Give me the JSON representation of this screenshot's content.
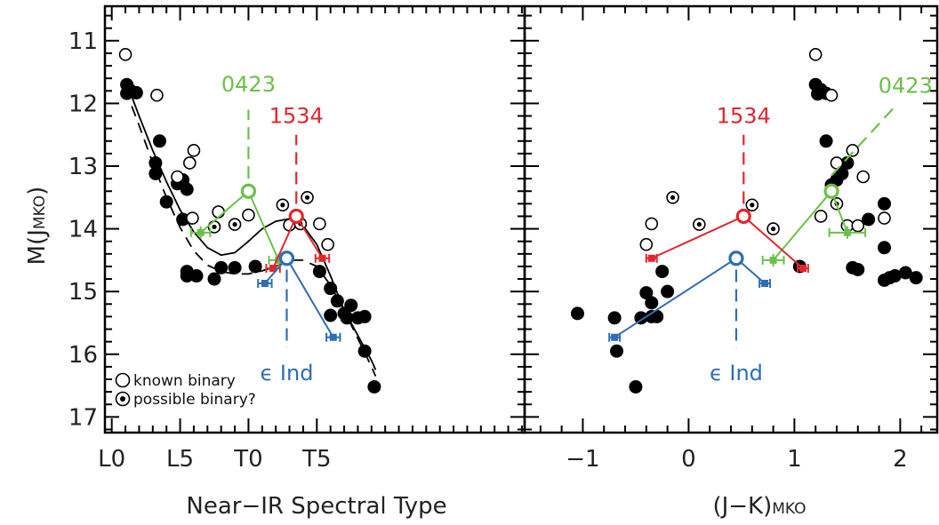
{
  "colors": {
    "green": "#6cc04a",
    "red": "#e3262c",
    "blue": "#2f6db5",
    "black": "#000000"
  },
  "legend": {
    "known": "known binary",
    "possible": "possible binary?"
  },
  "chart_data": [
    {
      "type": "scatter",
      "xlabel": "Near−IR Spectral Type",
      "ylabel": "M(J",
      "ylabel_sub": "MKO",
      "ylabel_close": ")",
      "xlim": [
        -0.5,
        30.2
      ],
      "ylim": [
        17.25,
        10.45
      ],
      "xticks": [
        {
          "v": 0,
          "label": "L0"
        },
        {
          "v": 5,
          "label": "L5"
        },
        {
          "v": 10,
          "label": "T0"
        },
        {
          "v": 15,
          "label": "T5"
        }
      ],
      "yticks": [
        11,
        12,
        13,
        14,
        15,
        16,
        17
      ],
      "single_points": [
        [
          1.1,
          11.7
        ],
        [
          1.1,
          11.84
        ],
        [
          1.3,
          11.78
        ],
        [
          1.8,
          11.83
        ],
        [
          3.5,
          12.6
        ],
        [
          3.2,
          12.95
        ],
        [
          3.2,
          13.12
        ],
        [
          4.8,
          13.28
        ],
        [
          5.2,
          13.22
        ],
        [
          5.5,
          13.37
        ],
        [
          4.0,
          13.57
        ],
        [
          5.2,
          13.85
        ],
        [
          5.5,
          14.68
        ],
        [
          5.5,
          14.75
        ],
        [
          6.2,
          14.75
        ],
        [
          7.5,
          14.8
        ],
        [
          8.0,
          14.62
        ],
        [
          9.0,
          14.62
        ],
        [
          10.5,
          14.6
        ],
        [
          15.2,
          14.68
        ],
        [
          16.0,
          14.95
        ],
        [
          16.0,
          15.38
        ],
        [
          16.5,
          15.15
        ],
        [
          17.0,
          15.35
        ],
        [
          17.2,
          15.42
        ],
        [
          17.5,
          15.22
        ],
        [
          18.0,
          15.42
        ],
        [
          18.5,
          15.4
        ],
        [
          18.5,
          15.95
        ],
        [
          19.2,
          16.52
        ]
      ],
      "known_binaries": [
        [
          1.0,
          11.22
        ],
        [
          3.3,
          11.87
        ],
        [
          4.8,
          13.17
        ],
        [
          5.7,
          12.95
        ],
        [
          6.0,
          12.75
        ],
        [
          5.9,
          13.83
        ],
        [
          7.8,
          13.73
        ],
        [
          10.0,
          13.78
        ],
        [
          13.0,
          13.94
        ],
        [
          15.2,
          13.92
        ],
        [
          15.8,
          14.25
        ]
      ],
      "possible_binaries": [
        [
          7.5,
          13.97
        ],
        [
          9.0,
          13.93
        ],
        [
          12.5,
          13.62
        ],
        [
          13.8,
          13.92
        ],
        [
          14.3,
          13.5
        ]
      ],
      "curves": {
        "solid": [
          [
            1.0,
            11.62
          ],
          [
            2.0,
            12.2
          ],
          [
            3.0,
            12.75
          ],
          [
            4.0,
            13.25
          ],
          [
            5.0,
            13.7
          ],
          [
            6.0,
            14.05
          ],
          [
            7.0,
            14.3
          ],
          [
            8.0,
            14.42
          ],
          [
            9.0,
            14.38
          ],
          [
            10.0,
            14.2
          ],
          [
            11.0,
            14.0
          ],
          [
            12.0,
            13.88
          ],
          [
            13.0,
            13.84
          ],
          [
            14.0,
            13.95
          ],
          [
            15.0,
            14.25
          ],
          [
            16.0,
            14.75
          ],
          [
            17.0,
            15.3
          ],
          [
            18.0,
            15.7
          ],
          [
            19.0,
            16.1
          ],
          [
            19.3,
            16.25
          ]
        ],
        "dashed": [
          [
            1.0,
            11.78
          ],
          [
            2.0,
            12.35
          ],
          [
            3.0,
            12.95
          ],
          [
            4.0,
            13.5
          ],
          [
            5.0,
            13.98
          ],
          [
            6.0,
            14.35
          ],
          [
            7.0,
            14.58
          ],
          [
            8.0,
            14.68
          ],
          [
            9.0,
            14.72
          ],
          [
            10.0,
            14.72
          ],
          [
            11.0,
            14.67
          ],
          [
            12.0,
            14.6
          ],
          [
            13.0,
            14.5
          ],
          [
            14.0,
            14.5
          ],
          [
            15.0,
            14.6
          ],
          [
            16.0,
            14.9
          ],
          [
            17.0,
            15.3
          ],
          [
            18.0,
            15.75
          ],
          [
            19.0,
            16.2
          ],
          [
            19.3,
            16.35
          ]
        ]
      },
      "systems": [
        {
          "label": "0423",
          "color": "green",
          "primary": [
            6.5,
            14.06
          ],
          "xerr": 0.7,
          "yerr": 0.1,
          "secondary": [
            12.2,
            14.5
          ],
          "xerr2": 0.7,
          "yerr2": 0.1,
          "combined": [
            10.0,
            13.4
          ],
          "label_pos": [
            10.0,
            11.7
          ],
          "tick_from": 13.2,
          "tick_to": 12.1
        },
        {
          "label": "1534",
          "color": "red",
          "primary": [
            11.8,
            14.63
          ],
          "xerr": 0.5,
          "yerr": 0.05,
          "secondary": [
            15.4,
            14.47
          ],
          "xerr2": 0.5,
          "yerr2": 0.05,
          "combined": [
            13.5,
            13.8
          ],
          "label_pos": [
            13.5,
            12.2
          ],
          "tick_from": 13.6,
          "tick_to": 12.5
        },
        {
          "label": "ϵ Ind",
          "color": "blue",
          "primary": [
            11.2,
            14.87
          ],
          "xerr": 0.5,
          "yerr": 0.05,
          "secondary": [
            16.2,
            15.73
          ],
          "xerr2": 0.5,
          "yerr2": 0.05,
          "combined": [
            12.8,
            14.47
          ],
          "label_pos": [
            12.8,
            16.3
          ],
          "tick_from": 14.65,
          "tick_to": 15.9
        }
      ]
    },
    {
      "type": "scatter",
      "xlabel": "(J−K)",
      "xlabel_sub": "MKO",
      "xlim": [
        -1.55,
        2.35
      ],
      "ylim": [
        17.25,
        10.45
      ],
      "xticks": [
        {
          "v": -1,
          "label": "−1"
        },
        {
          "v": 0,
          "label": "0"
        },
        {
          "v": 1,
          "label": "1"
        },
        {
          "v": 2,
          "label": "2"
        }
      ],
      "single_points": [
        [
          -1.05,
          15.35
        ],
        [
          -0.7,
          15.42
        ],
        [
          -0.68,
          15.95
        ],
        [
          -0.45,
          15.42
        ],
        [
          -0.35,
          15.4
        ],
        [
          -0.3,
          15.4
        ],
        [
          -0.5,
          16.52
        ],
        [
          -0.4,
          15.02
        ],
        [
          -0.35,
          15.18
        ],
        [
          -0.25,
          14.68
        ],
        [
          -0.2,
          15.0
        ],
        [
          1.05,
          14.6
        ],
        [
          1.2,
          11.7
        ],
        [
          1.22,
          11.85
        ],
        [
          1.25,
          11.78
        ],
        [
          1.3,
          11.84
        ],
        [
          1.3,
          12.6
        ],
        [
          1.35,
          13.3
        ],
        [
          1.4,
          13.22
        ],
        [
          1.45,
          13.12
        ],
        [
          1.5,
          12.95
        ],
        [
          1.55,
          14.62
        ],
        [
          1.6,
          14.65
        ],
        [
          1.7,
          13.85
        ],
        [
          1.85,
          13.6
        ],
        [
          1.85,
          14.3
        ],
        [
          1.9,
          14.78
        ],
        [
          1.95,
          14.75
        ],
        [
          2.05,
          14.7
        ],
        [
          2.15,
          14.78
        ],
        [
          1.85,
          14.82
        ]
      ],
      "known_binaries": [
        [
          -0.4,
          14.25
        ],
        [
          -0.35,
          13.92
        ],
        [
          1.2,
          11.22
        ],
        [
          1.25,
          13.8
        ],
        [
          1.35,
          11.87
        ],
        [
          1.4,
          12.95
        ],
        [
          1.5,
          13.95
        ],
        [
          1.55,
          12.75
        ],
        [
          1.6,
          13.95
        ],
        [
          1.65,
          13.17
        ],
        [
          1.85,
          13.83
        ]
      ],
      "possible_binaries": [
        [
          -0.15,
          13.5
        ],
        [
          0.1,
          13.93
        ],
        [
          0.6,
          13.62
        ],
        [
          0.8,
          14.0
        ],
        [
          1.4,
          13.6
        ]
      ],
      "systems": [
        {
          "label": "0423",
          "color": "green",
          "primary": [
            1.5,
            14.06
          ],
          "xerr": 0.17,
          "yerr": 0.1,
          "secondary": [
            0.8,
            14.5
          ],
          "xerr2": 0.1,
          "yerr2": 0.1,
          "combined": [
            1.35,
            13.4
          ],
          "label_pos": [
            2.05,
            11.72
          ],
          "tick_from": 13.15,
          "tick_to": 12.05,
          "slanted": true,
          "tick_x2": 1.95
        },
        {
          "label": "1534",
          "color": "red",
          "primary": [
            -0.35,
            14.47
          ],
          "xerr": 0.05,
          "yerr": 0.05,
          "secondary": [
            1.08,
            14.63
          ],
          "xerr2": 0.05,
          "yerr2": 0.05,
          "combined": [
            0.52,
            13.8
          ],
          "label_pos": [
            0.52,
            12.2
          ],
          "tick_from": 13.6,
          "tick_to": 12.5
        },
        {
          "label": "ϵ Ind",
          "color": "blue",
          "primary": [
            -0.7,
            15.73
          ],
          "xerr": 0.05,
          "yerr": 0.05,
          "secondary": [
            0.72,
            14.87
          ],
          "xerr2": 0.05,
          "yerr2": 0.05,
          "combined": [
            0.45,
            14.47
          ],
          "label_pos": [
            0.45,
            16.3
          ],
          "tick_from": 14.65,
          "tick_to": 15.9
        }
      ]
    }
  ]
}
